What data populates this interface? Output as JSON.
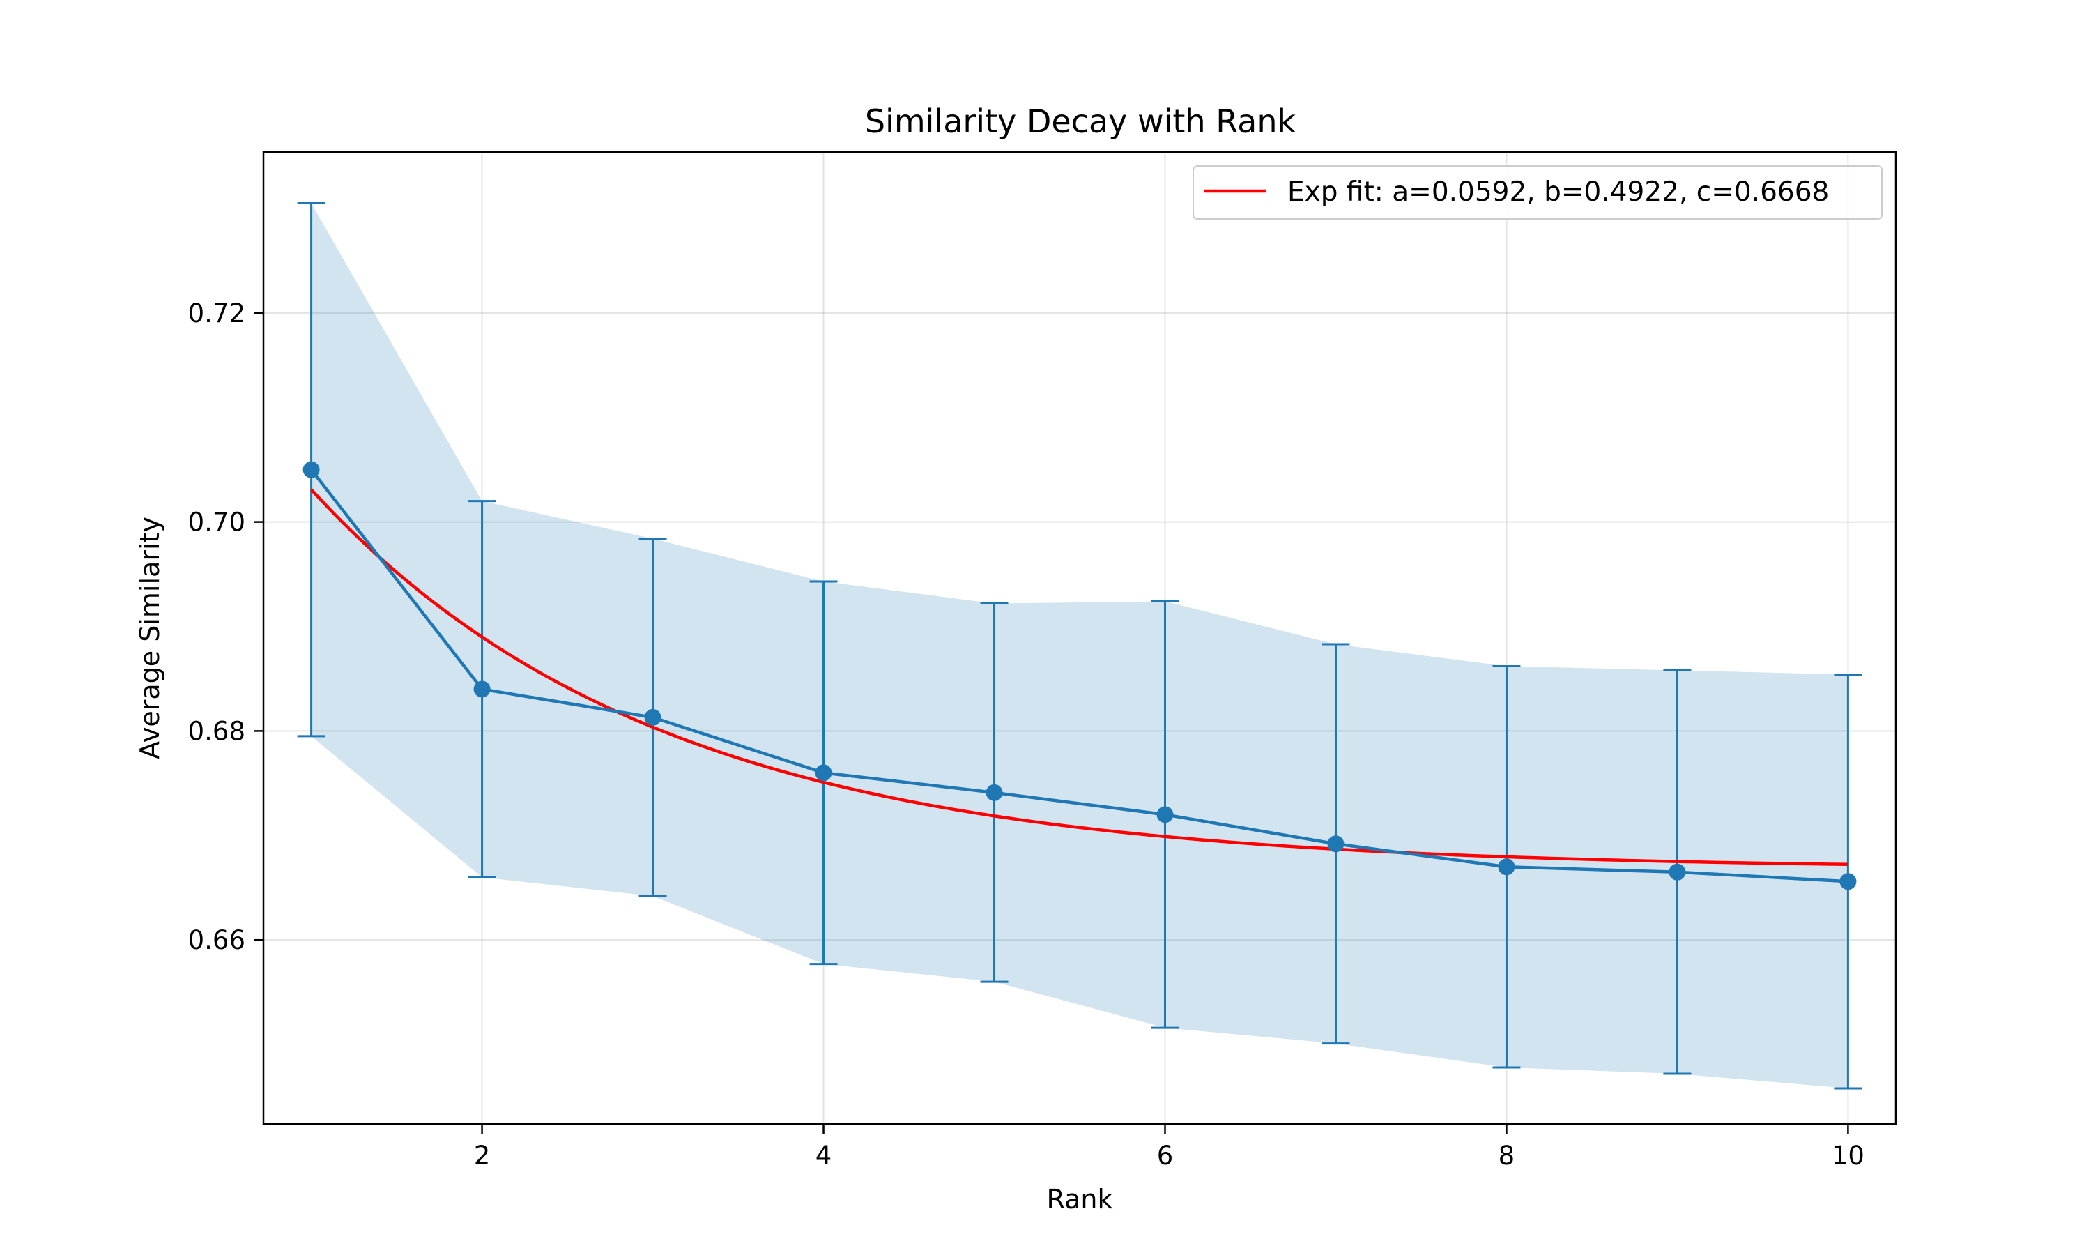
{
  "chart_data": {
    "type": "line",
    "title": "Similarity Decay with Rank",
    "xlabel": "Rank",
    "ylabel": "Average Similarity",
    "xlim": [
      0.72,
      10.28
    ],
    "ylim": [
      0.6424,
      0.7354
    ],
    "xticks": [
      2,
      4,
      6,
      8,
      10
    ],
    "xtick_labels": [
      "2",
      "4",
      "6",
      "8",
      "10"
    ],
    "yticks": [
      0.66,
      0.68,
      0.7,
      0.72
    ],
    "ytick_labels": [
      "0.66",
      "0.68",
      "0.70",
      "0.72"
    ],
    "grid": true,
    "legend_position": "top-right",
    "series": [
      {
        "type": "line-errorbar",
        "color": "#1f77b4",
        "x": [
          1,
          2,
          3,
          4,
          5,
          6,
          7,
          8,
          9,
          10
        ],
        "y": [
          0.705,
          0.684,
          0.6813,
          0.676,
          0.6741,
          0.672,
          0.6692,
          0.667,
          0.6665,
          0.6656
        ],
        "lower": [
          0.6795,
          0.666,
          0.6642,
          0.6577,
          0.656,
          0.6516,
          0.6501,
          0.6478,
          0.6472,
          0.6458
        ],
        "upper": [
          0.7305,
          0.702,
          0.6984,
          0.6943,
          0.6922,
          0.6924,
          0.6883,
          0.6862,
          0.6858,
          0.6854
        ],
        "band_color": "#1f77b4",
        "band_opacity": 0.2
      },
      {
        "type": "fit",
        "name": "Exp fit: a=0.0592, b=0.4922, c=0.6668",
        "color": "#ff0000",
        "model": "a*exp(-b*(x-1))+c",
        "params": {
          "a": 0.0363,
          "b": 0.4922,
          "c": 0.6668
        },
        "x_range": [
          1,
          10
        ]
      }
    ]
  }
}
